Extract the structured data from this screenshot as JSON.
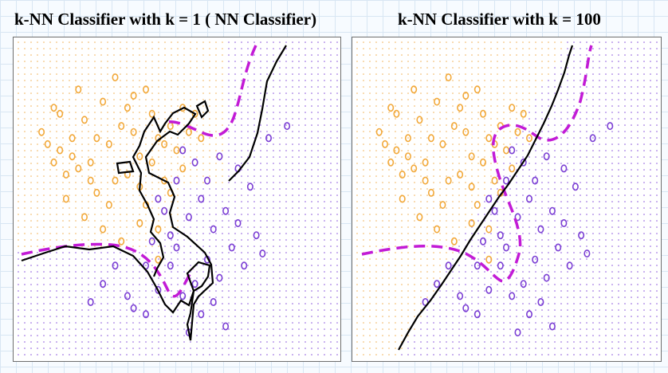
{
  "titles": {
    "left": "k-NN Classifier with k = 1 ( NN Classifier)",
    "right": "k-NN Classifier with k = 100"
  },
  "colors": {
    "orange": "#f2a93b",
    "purple": "#7b3fd4",
    "boundary": "#000000",
    "bayes": "#c21bd6",
    "grid_orange": "#f0b055",
    "grid_purple": "#8a55dd"
  },
  "chart_data": [
    {
      "type": "scatter",
      "title": "k-NN Classifier with k = 1 ( NN Classifier)",
      "xlim": [
        0,
        1
      ],
      "ylim": [
        0,
        1
      ],
      "grid": false,
      "series": [
        {
          "values": "orange",
          "points": [
            [
              0.06,
              0.72
            ],
            [
              0.1,
              0.8
            ],
            [
              0.12,
              0.66
            ],
            [
              0.14,
              0.58
            ],
            [
              0.16,
              0.7
            ],
            [
              0.18,
              0.86
            ],
            [
              0.2,
              0.76
            ],
            [
              0.22,
              0.62
            ],
            [
              0.24,
              0.52
            ],
            [
              0.26,
              0.82
            ],
            [
              0.28,
              0.68
            ],
            [
              0.3,
              0.9
            ],
            [
              0.32,
              0.74
            ],
            [
              0.34,
              0.58
            ],
            [
              0.36,
              0.84
            ],
            [
              0.38,
              0.64
            ],
            [
              0.4,
              0.48
            ],
            [
              0.42,
              0.78
            ],
            [
              0.44,
              0.7
            ],
            [
              0.46,
              0.56
            ],
            [
              0.48,
              0.74
            ],
            [
              0.5,
              0.66
            ],
            [
              0.52,
              0.8
            ],
            [
              0.54,
              0.72
            ],
            [
              0.14,
              0.5
            ],
            [
              0.2,
              0.44
            ],
            [
              0.26,
              0.4
            ],
            [
              0.32,
              0.36
            ],
            [
              0.38,
              0.42
            ],
            [
              0.44,
              0.3
            ],
            [
              0.12,
              0.78
            ],
            [
              0.18,
              0.6
            ],
            [
              0.24,
              0.7
            ],
            [
              0.3,
              0.56
            ],
            [
              0.36,
              0.72
            ],
            [
              0.42,
              0.62
            ],
            [
              0.48,
              0.52
            ],
            [
              0.4,
              0.86
            ],
            [
              0.34,
              0.8
            ],
            [
              0.28,
              0.48
            ],
            [
              0.16,
              0.64
            ],
            [
              0.22,
              0.56
            ],
            [
              0.46,
              0.68
            ],
            [
              0.52,
              0.6
            ],
            [
              0.56,
              0.78
            ],
            [
              0.58,
              0.7
            ],
            [
              0.1,
              0.62
            ],
            [
              0.08,
              0.68
            ],
            [
              0.44,
              0.4
            ],
            [
              0.38,
              0.54
            ]
          ]
        },
        {
          "values": "purple",
          "points": [
            [
              0.86,
              0.74
            ],
            [
              0.8,
              0.7
            ],
            [
              0.74,
              0.54
            ],
            [
              0.7,
              0.6
            ],
            [
              0.66,
              0.46
            ],
            [
              0.62,
              0.4
            ],
            [
              0.58,
              0.5
            ],
            [
              0.54,
              0.44
            ],
            [
              0.5,
              0.56
            ],
            [
              0.48,
              0.38
            ],
            [
              0.44,
              0.5
            ],
            [
              0.6,
              0.3
            ],
            [
              0.64,
              0.24
            ],
            [
              0.68,
              0.34
            ],
            [
              0.72,
              0.28
            ],
            [
              0.56,
              0.22
            ],
            [
              0.52,
              0.18
            ],
            [
              0.48,
              0.28
            ],
            [
              0.58,
              0.12
            ],
            [
              0.62,
              0.16
            ],
            [
              0.3,
              0.28
            ],
            [
              0.26,
              0.22
            ],
            [
              0.22,
              0.16
            ],
            [
              0.34,
              0.18
            ],
            [
              0.4,
              0.12
            ],
            [
              0.44,
              0.2
            ],
            [
              0.66,
              0.08
            ],
            [
              0.54,
              0.06
            ],
            [
              0.5,
              0.34
            ],
            [
              0.46,
              0.46
            ],
            [
              0.56,
              0.62
            ],
            [
              0.52,
              0.66
            ],
            [
              0.6,
              0.56
            ],
            [
              0.7,
              0.42
            ],
            [
              0.76,
              0.38
            ],
            [
              0.78,
              0.32
            ],
            [
              0.4,
              0.28
            ],
            [
              0.36,
              0.14
            ],
            [
              0.42,
              0.36
            ],
            [
              0.64,
              0.64
            ]
          ]
        }
      ]
    },
    {
      "type": "scatter",
      "title": "k-NN Classifier with k = 100",
      "xlim": [
        0,
        1
      ],
      "ylim": [
        0,
        1
      ],
      "grid": false,
      "series": [
        {
          "values": "orange",
          "points": [
            [
              0.06,
              0.72
            ],
            [
              0.1,
              0.8
            ],
            [
              0.12,
              0.66
            ],
            [
              0.14,
              0.58
            ],
            [
              0.16,
              0.7
            ],
            [
              0.18,
              0.86
            ],
            [
              0.2,
              0.76
            ],
            [
              0.22,
              0.62
            ],
            [
              0.24,
              0.52
            ],
            [
              0.26,
              0.82
            ],
            [
              0.28,
              0.68
            ],
            [
              0.3,
              0.9
            ],
            [
              0.32,
              0.74
            ],
            [
              0.34,
              0.58
            ],
            [
              0.36,
              0.84
            ],
            [
              0.38,
              0.64
            ],
            [
              0.4,
              0.48
            ],
            [
              0.42,
              0.78
            ],
            [
              0.44,
              0.7
            ],
            [
              0.46,
              0.56
            ],
            [
              0.48,
              0.74
            ],
            [
              0.5,
              0.66
            ],
            [
              0.52,
              0.8
            ],
            [
              0.54,
              0.72
            ],
            [
              0.14,
              0.5
            ],
            [
              0.2,
              0.44
            ],
            [
              0.26,
              0.4
            ],
            [
              0.32,
              0.36
            ],
            [
              0.38,
              0.42
            ],
            [
              0.44,
              0.3
            ],
            [
              0.12,
              0.78
            ],
            [
              0.18,
              0.6
            ],
            [
              0.24,
              0.7
            ],
            [
              0.3,
              0.56
            ],
            [
              0.36,
              0.72
            ],
            [
              0.42,
              0.62
            ],
            [
              0.48,
              0.52
            ],
            [
              0.4,
              0.86
            ],
            [
              0.34,
              0.8
            ],
            [
              0.28,
              0.48
            ],
            [
              0.16,
              0.64
            ],
            [
              0.22,
              0.56
            ],
            [
              0.46,
              0.68
            ],
            [
              0.52,
              0.6
            ],
            [
              0.56,
              0.78
            ],
            [
              0.58,
              0.7
            ],
            [
              0.1,
              0.62
            ],
            [
              0.08,
              0.68
            ],
            [
              0.44,
              0.4
            ],
            [
              0.38,
              0.54
            ]
          ]
        },
        {
          "values": "purple",
          "points": [
            [
              0.86,
              0.74
            ],
            [
              0.8,
              0.7
            ],
            [
              0.74,
              0.54
            ],
            [
              0.7,
              0.6
            ],
            [
              0.66,
              0.46
            ],
            [
              0.62,
              0.4
            ],
            [
              0.58,
              0.5
            ],
            [
              0.54,
              0.44
            ],
            [
              0.5,
              0.56
            ],
            [
              0.48,
              0.38
            ],
            [
              0.44,
              0.5
            ],
            [
              0.6,
              0.3
            ],
            [
              0.64,
              0.24
            ],
            [
              0.68,
              0.34
            ],
            [
              0.72,
              0.28
            ],
            [
              0.56,
              0.22
            ],
            [
              0.52,
              0.18
            ],
            [
              0.48,
              0.28
            ],
            [
              0.58,
              0.12
            ],
            [
              0.62,
              0.16
            ],
            [
              0.3,
              0.28
            ],
            [
              0.26,
              0.22
            ],
            [
              0.22,
              0.16
            ],
            [
              0.34,
              0.18
            ],
            [
              0.4,
              0.12
            ],
            [
              0.44,
              0.2
            ],
            [
              0.66,
              0.08
            ],
            [
              0.54,
              0.06
            ],
            [
              0.5,
              0.34
            ],
            [
              0.46,
              0.46
            ],
            [
              0.56,
              0.62
            ],
            [
              0.52,
              0.66
            ],
            [
              0.6,
              0.56
            ],
            [
              0.7,
              0.42
            ],
            [
              0.76,
              0.38
            ],
            [
              0.78,
              0.32
            ],
            [
              0.4,
              0.28
            ],
            [
              0.36,
              0.14
            ],
            [
              0.42,
              0.36
            ],
            [
              0.64,
              0.64
            ]
          ]
        }
      ]
    }
  ]
}
